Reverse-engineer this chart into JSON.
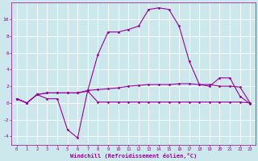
{
  "background_color": "#cce8ec",
  "grid_color": "#ffffff",
  "line_color": "#990099",
  "xlabel": "Windchill (Refroidissement éolien,°C)",
  "xlabel_color": "#990099",
  "tick_color": "#990099",
  "ylim": [
    -5,
    12
  ],
  "xlim": [
    -0.5,
    23.5
  ],
  "yticks": [
    -4,
    -2,
    0,
    2,
    4,
    6,
    8,
    10
  ],
  "xticks": [
    0,
    1,
    2,
    3,
    4,
    5,
    6,
    7,
    8,
    9,
    10,
    11,
    12,
    13,
    14,
    15,
    16,
    17,
    18,
    19,
    20,
    21,
    22,
    23
  ],
  "series1_x": [
    0,
    1,
    2,
    3,
    4,
    5,
    6,
    7,
    8,
    9,
    10,
    11,
    12,
    13,
    14,
    15,
    16,
    17,
    18,
    19,
    20,
    21,
    22,
    23
  ],
  "series1_y": [
    0.5,
    0.0,
    1.0,
    0.5,
    0.5,
    -3.2,
    -4.2,
    1.5,
    5.8,
    8.5,
    8.5,
    8.8,
    9.2,
    11.2,
    11.4,
    11.2,
    9.2,
    5.0,
    2.2,
    2.0,
    3.0,
    3.0,
    0.8,
    -0.1
  ],
  "series2_x": [
    0,
    1,
    2,
    3,
    4,
    5,
    6,
    7,
    8,
    9,
    10,
    11,
    12,
    13,
    14,
    15,
    16,
    17,
    18,
    19,
    20,
    21,
    22,
    23
  ],
  "series2_y": [
    0.5,
    0.0,
    1.0,
    1.2,
    1.2,
    1.2,
    1.2,
    1.5,
    1.6,
    1.7,
    1.8,
    2.0,
    2.1,
    2.2,
    2.2,
    2.2,
    2.3,
    2.3,
    2.2,
    2.2,
    2.0,
    2.0,
    1.9,
    0.0
  ],
  "series3_x": [
    0,
    1,
    2,
    3,
    4,
    5,
    6,
    7,
    8,
    9,
    10,
    11,
    12,
    13,
    14,
    15,
    16,
    17,
    18,
    19,
    20,
    21,
    22,
    23
  ],
  "series3_y": [
    0.5,
    0.0,
    1.0,
    1.2,
    1.2,
    1.2,
    1.2,
    1.4,
    0.1,
    0.1,
    0.1,
    0.1,
    0.1,
    0.1,
    0.1,
    0.1,
    0.1,
    0.1,
    0.1,
    0.1,
    0.1,
    0.1,
    0.1,
    0.0
  ]
}
